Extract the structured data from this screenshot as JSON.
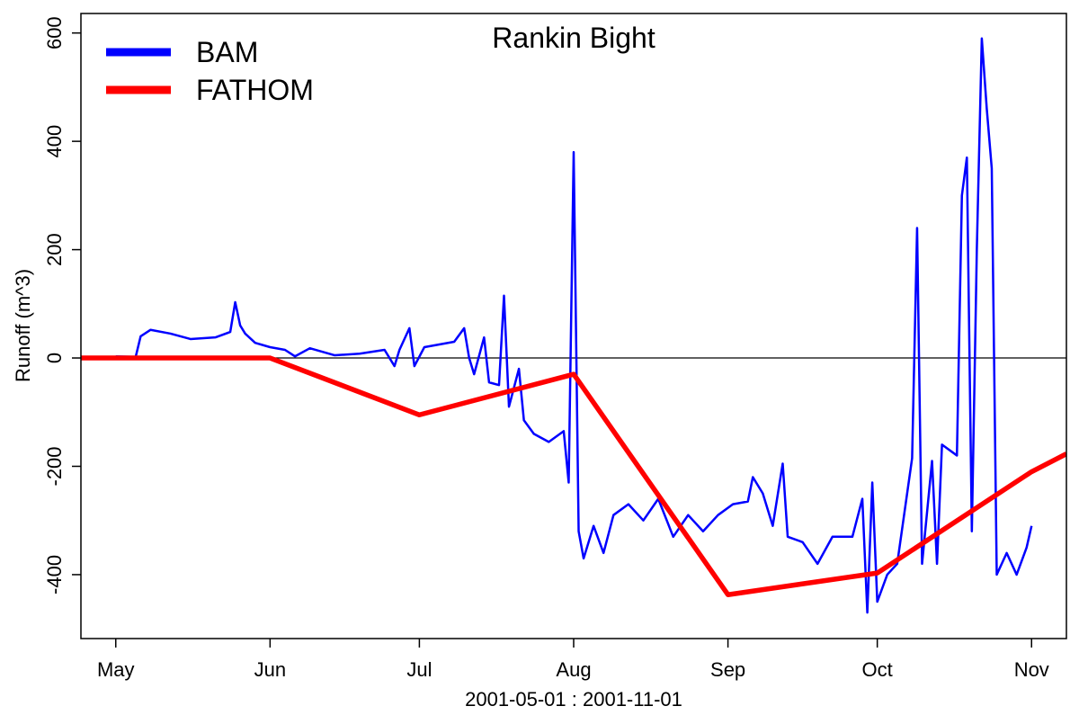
{
  "chart_data": {
    "type": "line",
    "title": "Rankin Bight",
    "xlabel": "2001-05-01 : 2001-11-01",
    "ylabel": "Runoff (m^3)",
    "xlim": [
      "2001-04-24",
      "2001-11-08"
    ],
    "ylim": [
      -518,
      636
    ],
    "xticks": [
      {
        "value": "2001-05-01",
        "label": "May"
      },
      {
        "value": "2001-06-01",
        "label": "Jun"
      },
      {
        "value": "2001-07-01",
        "label": "Jul"
      },
      {
        "value": "2001-08-01",
        "label": "Aug"
      },
      {
        "value": "2001-09-01",
        "label": "Sep"
      },
      {
        "value": "2001-10-01",
        "label": "Oct"
      },
      {
        "value": "2001-11-01",
        "label": "Nov"
      }
    ],
    "yticks": [
      -400,
      -200,
      0,
      200,
      400,
      600
    ],
    "zero_line": true,
    "legend": "top-left",
    "series": [
      {
        "name": "BAM",
        "color": "#0000ff",
        "x": [
          "2001-05-01",
          "2001-05-05",
          "2001-05-06",
          "2001-05-08",
          "2001-05-12",
          "2001-05-16",
          "2001-05-21",
          "2001-05-24",
          "2001-05-25",
          "2001-05-26",
          "2001-05-27",
          "2001-05-29",
          "2001-06-01",
          "2001-06-04",
          "2001-06-06",
          "2001-06-09",
          "2001-06-14",
          "2001-06-19",
          "2001-06-24",
          "2001-06-26",
          "2001-06-27",
          "2001-06-29",
          "2001-06-30",
          "2001-07-02",
          "2001-07-05",
          "2001-07-08",
          "2001-07-10",
          "2001-07-11",
          "2001-07-12",
          "2001-07-14",
          "2001-07-15",
          "2001-07-17",
          "2001-07-18",
          "2001-07-19",
          "2001-07-21",
          "2001-07-22",
          "2001-07-24",
          "2001-07-27",
          "2001-07-30",
          "2001-07-31",
          "2001-08-01",
          "2001-08-02",
          "2001-08-03",
          "2001-08-05",
          "2001-08-07",
          "2001-08-09",
          "2001-08-12",
          "2001-08-15",
          "2001-08-18",
          "2001-08-21",
          "2001-08-24",
          "2001-08-27",
          "2001-08-30",
          "2001-09-02",
          "2001-09-05",
          "2001-09-06",
          "2001-09-08",
          "2001-09-10",
          "2001-09-12",
          "2001-09-13",
          "2001-09-16",
          "2001-09-19",
          "2001-09-22",
          "2001-09-26",
          "2001-09-28",
          "2001-09-29",
          "2001-09-30",
          "2001-10-01",
          "2001-10-03",
          "2001-10-05",
          "2001-10-08",
          "2001-10-09",
          "2001-10-10",
          "2001-10-12",
          "2001-10-13",
          "2001-10-14",
          "2001-10-17",
          "2001-10-18",
          "2001-10-19",
          "2001-10-20",
          "2001-10-21",
          "2001-10-22",
          "2001-10-23",
          "2001-10-24",
          "2001-10-25",
          "2001-10-27",
          "2001-10-29",
          "2001-10-31",
          "2001-11-01"
        ],
        "values": [
          3,
          2,
          40,
          52,
          45,
          35,
          38,
          48,
          103,
          60,
          45,
          28,
          20,
          15,
          3,
          18,
          5,
          8,
          15,
          -15,
          15,
          55,
          -15,
          20,
          25,
          30,
          55,
          0,
          -30,
          38,
          -45,
          -50,
          115,
          -90,
          -20,
          -115,
          -140,
          -155,
          -135,
          -230,
          380,
          -320,
          -370,
          -310,
          -360,
          -290,
          -270,
          -300,
          -260,
          -330,
          -290,
          -320,
          -290,
          -270,
          -265,
          -220,
          -250,
          -310,
          -195,
          -330,
          -340,
          -380,
          -330,
          -330,
          -260,
          -470,
          -230,
          -450,
          -400,
          -380,
          -185,
          240,
          -380,
          -190,
          -380,
          -160,
          -180,
          300,
          370,
          -320,
          200,
          590,
          460,
          350,
          -400,
          -360,
          -400,
          -350,
          -310
        ]
      },
      {
        "name": "FATHOM",
        "color": "#ff0000",
        "x": [
          "2001-04-24",
          "2001-05-01",
          "2001-06-01",
          "2001-07-01",
          "2001-08-01",
          "2001-09-01",
          "2001-10-01",
          "2001-11-01",
          "2001-11-08"
        ],
        "values": [
          0,
          0,
          0,
          -105,
          -30,
          -437,
          -397,
          -210,
          -177
        ]
      }
    ]
  }
}
